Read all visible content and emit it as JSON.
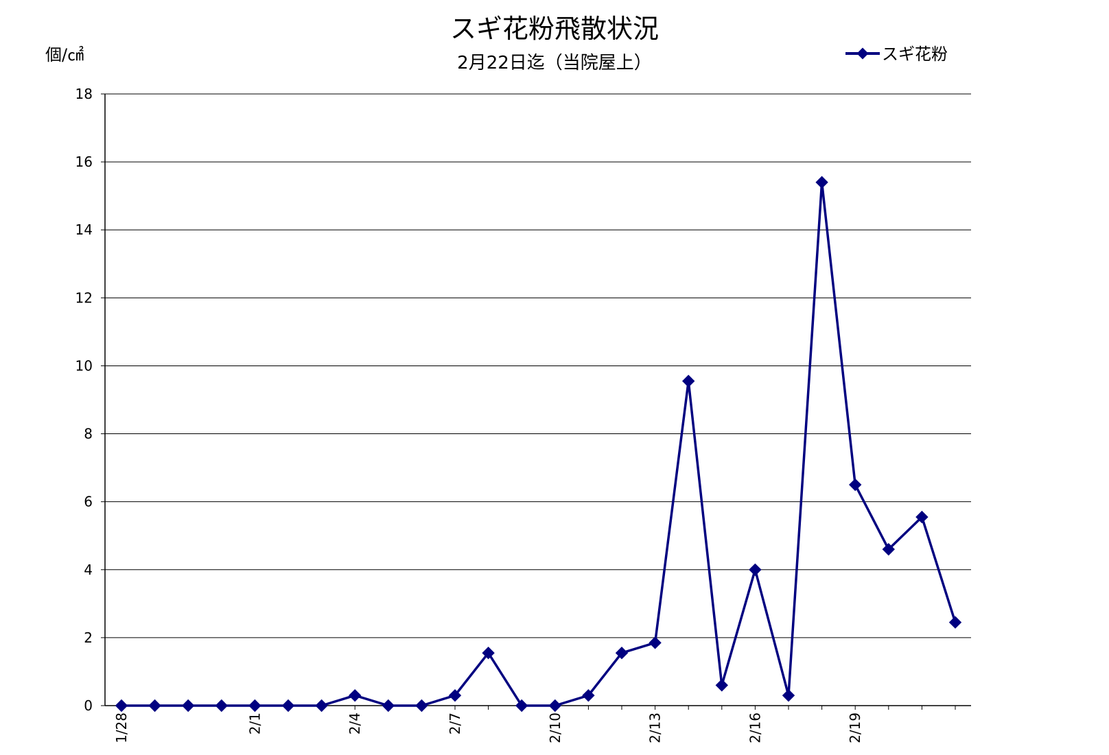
{
  "chart_data": {
    "type": "line",
    "title": "スギ花粉飛散状況",
    "subtitle": "2月22日迄（当院屋上）",
    "ylabel": "個/㎠",
    "xlabel": "",
    "ylim": [
      0,
      18
    ],
    "y_ticks": [
      "0",
      "2",
      "4",
      "6",
      "8",
      "10",
      "12",
      "14",
      "16",
      "18"
    ],
    "x_tick_labels": [
      "1/28",
      "2/1",
      "2/4",
      "2/7",
      "2/10",
      "2/13",
      "2/16",
      "2/19"
    ],
    "x_tick_label_indices": [
      0,
      4,
      7,
      10,
      13,
      16,
      19,
      22
    ],
    "categories": [
      "1/28",
      "1/29",
      "1/30",
      "1/31",
      "2/1",
      "2/2",
      "2/3",
      "2/4",
      "2/5",
      "2/6",
      "2/7",
      "2/8",
      "2/9",
      "2/10",
      "2/11",
      "2/12",
      "2/13",
      "2/14",
      "2/15",
      "2/16",
      "2/17",
      "2/18",
      "2/19",
      "2/20",
      "2/21",
      "2/22"
    ],
    "series": [
      {
        "name": "スギ花粉",
        "color": "#000080",
        "values": [
          0,
          0,
          0,
          0,
          0,
          0,
          0,
          0.3,
          0,
          0,
          0.3,
          1.55,
          0,
          0,
          0.3,
          1.55,
          1.85,
          9.55,
          0.6,
          4.0,
          0.3,
          15.4,
          6.5,
          4.6,
          5.55,
          2.45
        ]
      }
    ],
    "grid": true,
    "legend_position": "top-right"
  }
}
